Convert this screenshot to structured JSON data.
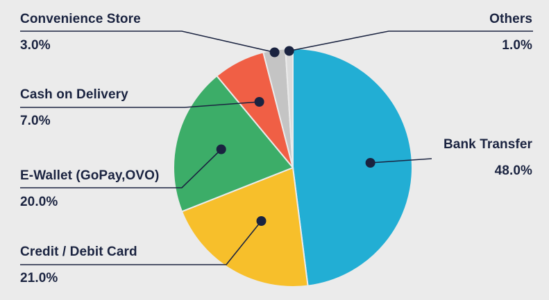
{
  "chart_data": {
    "type": "pie",
    "slices": [
      {
        "label": "Bank Transfer",
        "value": 48.0,
        "value_label": "48.0%",
        "color": "#22aed4"
      },
      {
        "label": "Credit / Debit Card",
        "value": 21.0,
        "value_label": "21.0%",
        "color": "#f7bf2b"
      },
      {
        "label": "E-Wallet (GoPay,OVO)",
        "value": 20.0,
        "value_label": "20.0%",
        "color": "#3cad68"
      },
      {
        "label": "Cash on Delivery",
        "value": 7.0,
        "value_label": "7.0%",
        "color": "#f05f45"
      },
      {
        "label": "Convenience Store",
        "value": 3.0,
        "value_label": "3.0%",
        "color": "#c4c4c4"
      },
      {
        "label": "Others",
        "value": 1.0,
        "value_label": "1.0%",
        "color": "#dcdcdc"
      }
    ],
    "leader_color": "#1a2340",
    "background": "#ebebeb"
  }
}
